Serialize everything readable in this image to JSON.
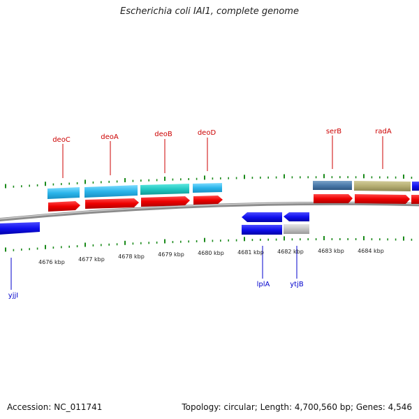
{
  "title": "Escherichia coli IAI1, complete genome",
  "footer": {
    "accession": "Accession: NC_011741",
    "summary": "Topology: circular; Length: 4,700,560 bp; Genes: 4,546"
  },
  "colors": {
    "ticks": "#1a8a1a",
    "label_top": "#cc0000",
    "label_bottom": "#0000cc",
    "backbone": "#8c8c8c"
  },
  "scale_labels": [
    "4676 kbp",
    "4677 kbp",
    "4678 kbp",
    "4679 kbp",
    "4680 kbp",
    "4681 kbp",
    "4682 kbp",
    "4683 kbp",
    "4684 kbp"
  ],
  "genes_top": [
    {
      "name": "deoC"
    },
    {
      "name": "deoA"
    },
    {
      "name": "deoB"
    },
    {
      "name": "deoD"
    },
    {
      "name": "serB"
    },
    {
      "name": "radA"
    }
  ],
  "genes_bottom": [
    {
      "name": "yjjI"
    },
    {
      "name": "lplA"
    },
    {
      "name": "ytjB"
    }
  ]
}
